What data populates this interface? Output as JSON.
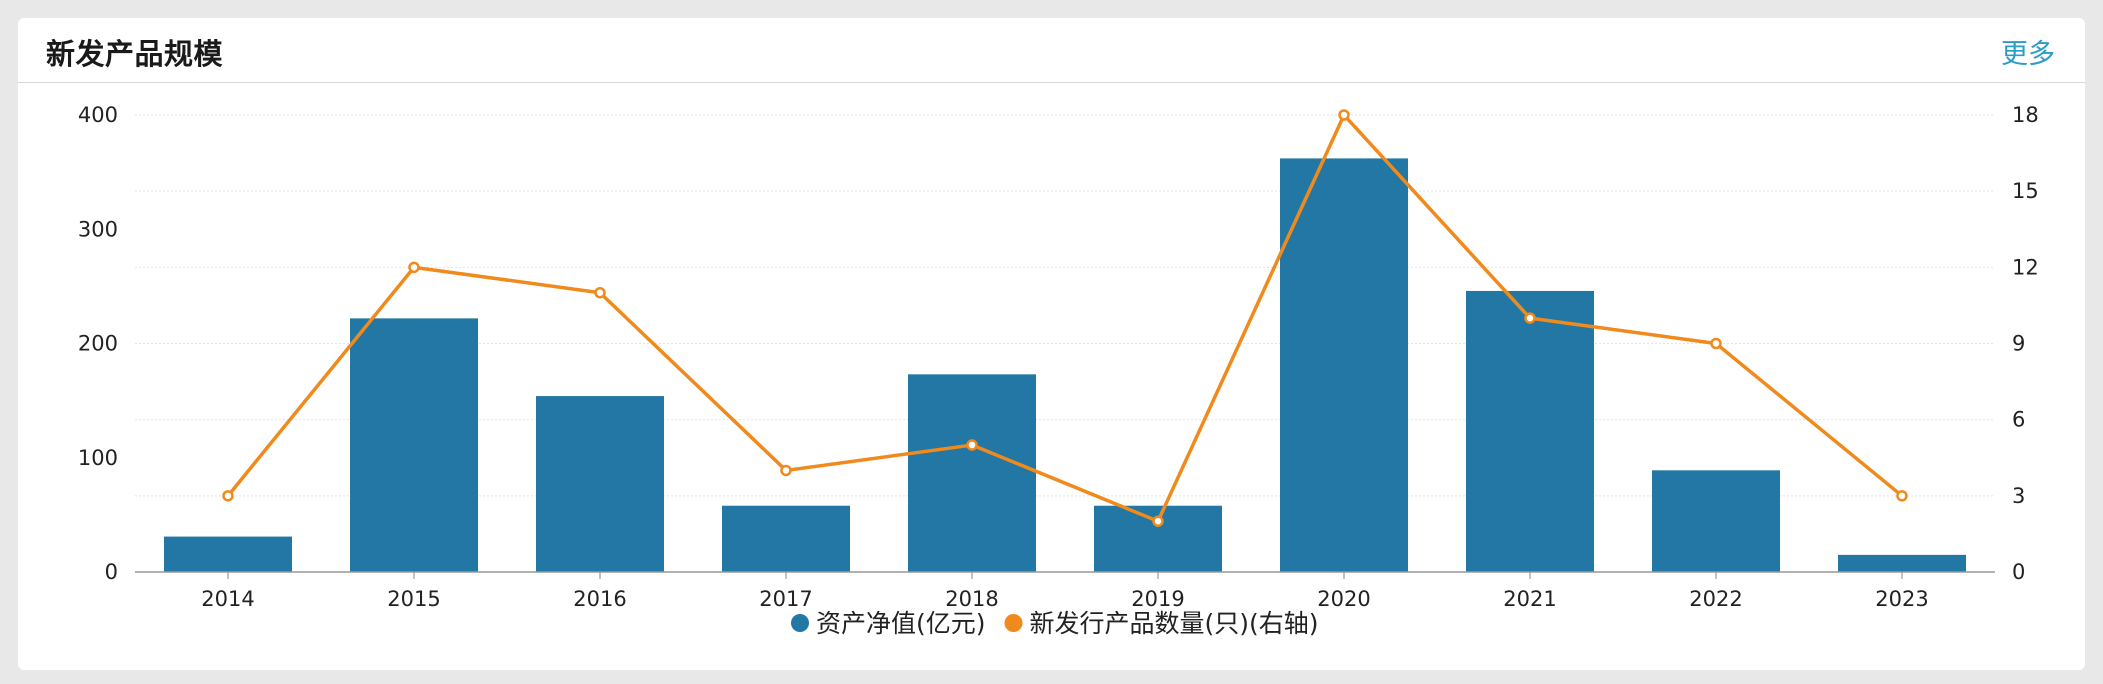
{
  "card": {
    "title": "新发产品规模",
    "more_label": "更多"
  },
  "colors": {
    "bar": "#2377a4",
    "line": "#f08a1c",
    "grid": "#e3e3e3",
    "axis": "#999999",
    "more_link": "#2b9cc6"
  },
  "chart_data": {
    "type": "bar",
    "title": "新发产品规模",
    "categories": [
      "2014",
      "2015",
      "2016",
      "2017",
      "2018",
      "2019",
      "2020",
      "2021",
      "2022",
      "2023"
    ],
    "series": [
      {
        "name": "资产净值(亿元)",
        "chart": "bar",
        "axis": "left",
        "values": [
          31,
          222,
          154,
          58,
          173,
          58,
          362,
          246,
          89,
          15
        ]
      },
      {
        "name": "新发行产品数量(只)(右轴)",
        "chart": "line",
        "axis": "right",
        "values": [
          3,
          12,
          11,
          4,
          5,
          2,
          18,
          10,
          9,
          3
        ]
      }
    ],
    "y_left": {
      "ylim": [
        0,
        400
      ],
      "ticks": [
        "0",
        "100",
        "200",
        "300",
        "400"
      ]
    },
    "y_right": {
      "ylim": [
        0,
        18
      ],
      "ticks": [
        "0",
        "3",
        "6",
        "9",
        "12",
        "15",
        "18"
      ]
    },
    "grid": true,
    "legend_position": "bottom-center"
  }
}
